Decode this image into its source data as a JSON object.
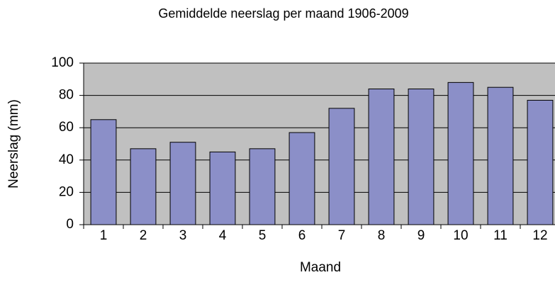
{
  "chart_data": {
    "type": "bar",
    "title": "Gemiddelde neerslag per maand 1906-2009",
    "x_label": "Maand",
    "y_label": "Neerslag (mm)",
    "categories": [
      "1",
      "2",
      "3",
      "4",
      "5",
      "6",
      "7",
      "8",
      "9",
      "10",
      "11",
      "12"
    ],
    "values": [
      65,
      47,
      51,
      45,
      47,
      57,
      72,
      84,
      84,
      88,
      85,
      77
    ],
    "color": "#8b8fc8",
    "ylim": [
      0,
      100
    ],
    "yticks": [
      0,
      20,
      40,
      60,
      80,
      100
    ],
    "grid": true
  }
}
